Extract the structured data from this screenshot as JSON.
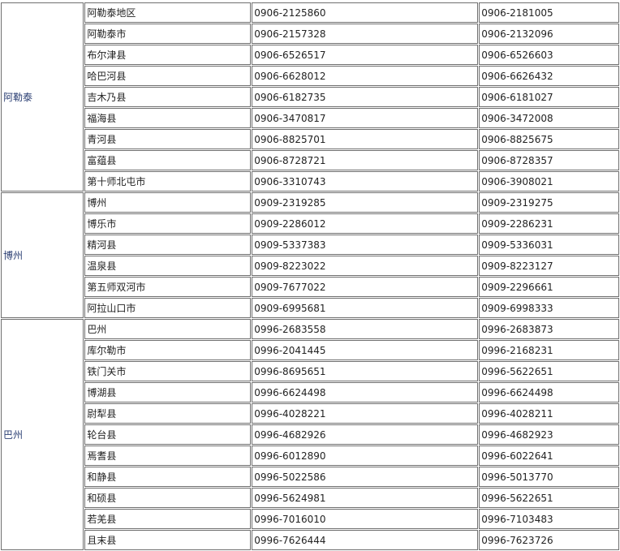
{
  "groups": [
    {
      "region": "阿勒泰",
      "rows": [
        [
          "阿勒泰地区",
          "0906-2125860",
          "0906-2181005"
        ],
        [
          "阿勒泰市",
          "0906-2157328",
          "0906-2132096"
        ],
        [
          "布尔津县",
          "0906-6526517",
          "0906-6526603"
        ],
        [
          "哈巴河县",
          "0906-6628012",
          "0906-6626432"
        ],
        [
          "吉木乃县",
          "0906-6182735",
          "0906-6181027"
        ],
        [
          "福海县",
          "0906-3470817",
          "0906-3472008"
        ],
        [
          "青河县",
          "0906-8825701",
          "0906-8825675"
        ],
        [
          "富蕴县",
          "0906-8728721",
          "0906-8728357"
        ],
        [
          "第十师北屯市",
          "0906-3310743",
          "0906-3908021"
        ]
      ]
    },
    {
      "region": "博州",
      "rows": [
        [
          "博州",
          "0909-2319285",
          "0909-2319275"
        ],
        [
          "博乐市",
          "0909-2286012",
          "0909-2286231"
        ],
        [
          "精河县",
          "0909-5337383",
          "0909-5336031"
        ],
        [
          "温泉县",
          "0909-8223022",
          "0909-8223127"
        ],
        [
          "第五师双河市",
          "0909-7677022",
          "0909-2296661"
        ],
        [
          "阿拉山口市",
          "0909-6995681",
          "0909-6998333"
        ]
      ]
    },
    {
      "region": "巴州",
      "rows": [
        [
          "巴州",
          "0996-2683558",
          "0996-2683873"
        ],
        [
          "库尔勒市",
          "0996-2041445",
          "0996-2168231"
        ],
        [
          "铁门关市",
          "0996-8695651",
          "0996-5622651"
        ],
        [
          "博湖县",
          "0996-6624498",
          "0996-6624498"
        ],
        [
          "尉犁县",
          "0996-4028221",
          "0996-4028211"
        ],
        [
          "轮台县",
          "0996-4682926",
          "0996-4682923"
        ],
        [
          "焉耆县",
          "0996-6012890",
          "0996-6022641"
        ],
        [
          "和静县",
          "0996-5022586",
          "0996-5013770"
        ],
        [
          "和硕县",
          "0996-5624981",
          "0996-5622651"
        ],
        [
          "若羌县",
          "0996-7016010",
          "0996-7103483"
        ],
        [
          "且末县",
          "0996-7626444",
          "0996-7623726"
        ]
      ]
    }
  ]
}
